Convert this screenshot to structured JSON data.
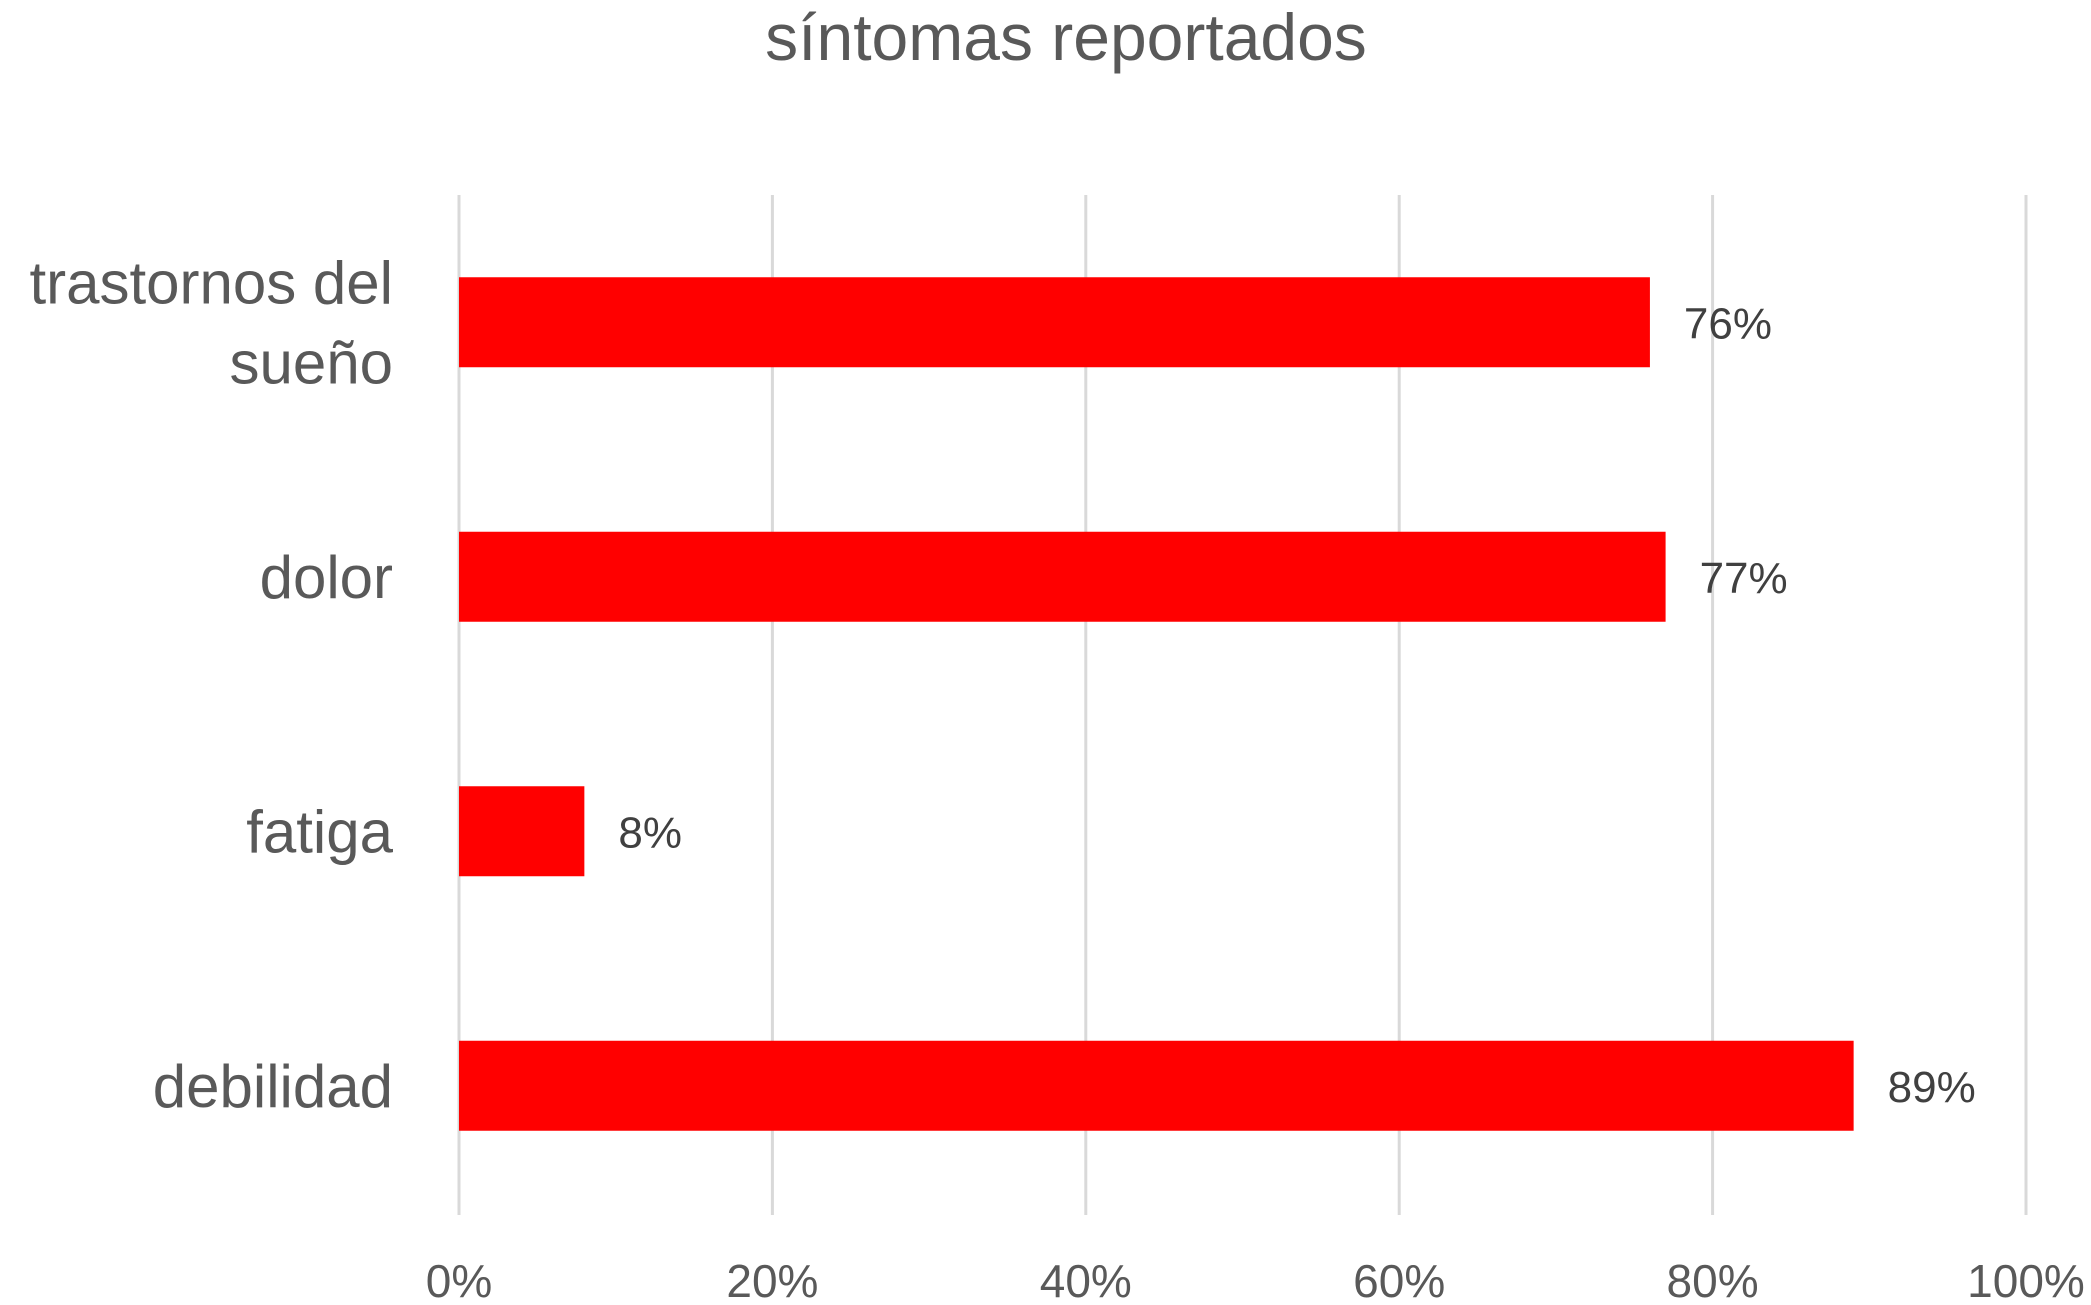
{
  "chart_data": {
    "type": "bar",
    "orientation": "horizontal",
    "title": "síntomas reportados",
    "xlabel": "",
    "ylabel": "",
    "categories": [
      "trastornos del sueño",
      "dolor",
      "fatiga",
      "debilidad"
    ],
    "category_lines": [
      [
        "trastornos del",
        "sueño"
      ],
      [
        "dolor"
      ],
      [
        "fatiga"
      ],
      [
        "debilidad"
      ]
    ],
    "values": [
      76,
      77,
      8,
      89
    ],
    "data_labels": [
      "76%",
      "77%",
      "8%",
      "89%"
    ],
    "xlim": [
      0,
      100
    ],
    "x_ticks": [
      0,
      20,
      40,
      60,
      80,
      100
    ],
    "x_tick_labels": [
      "0%",
      "20%",
      "40%",
      "60%",
      "80%",
      "100%"
    ],
    "grid": true,
    "legend": "none",
    "colors": {
      "bar": "#ff0000",
      "grid": "#d9d9d9",
      "text": "#595959"
    }
  }
}
